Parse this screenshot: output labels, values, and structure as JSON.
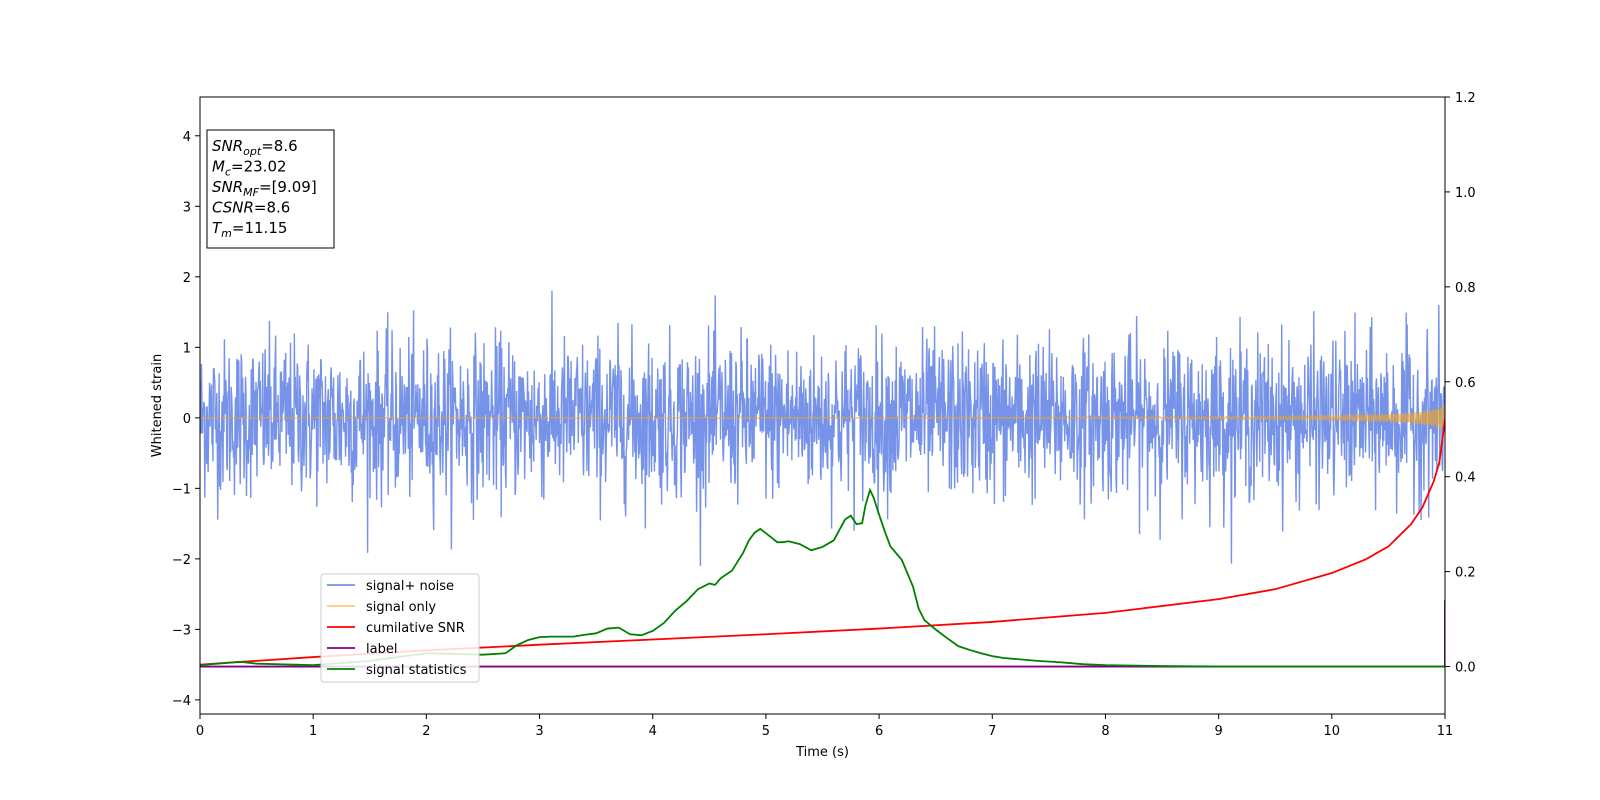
{
  "chart_data": {
    "type": "line",
    "xlabel": "Time (s)",
    "ylabel": "Whitened strain",
    "xlim": [
      0,
      11
    ],
    "ylim_left": [
      -4.2,
      4.55
    ],
    "ylim_right": [
      -0.1,
      1.2
    ],
    "x_ticks": [
      0,
      1,
      2,
      3,
      4,
      5,
      6,
      7,
      8,
      9,
      10,
      11
    ],
    "y_ticks_left": [
      -4,
      -3,
      -2,
      -1,
      0,
      1,
      2,
      3,
      4
    ],
    "y_ticks_right": [
      "0.0",
      "0.2",
      "0.4",
      "0.6",
      "0.8",
      "1.0",
      "1.2"
    ],
    "y_ticks_right_values": [
      0.0,
      0.2,
      0.4,
      0.6,
      0.8,
      1.0,
      1.2
    ],
    "grid": false,
    "legend_position": "lower-left",
    "info_box": {
      "lines": [
        {
          "main": "SNR",
          "sub": "opt",
          "rest": "=8.6"
        },
        {
          "main": "M",
          "sub": "c",
          "rest": "=23.02"
        },
        {
          "main": "SNR",
          "sub": "MF",
          "rest": "=[9.09]"
        },
        {
          "main": "CSNR",
          "sub": "",
          "rest": "=8.6"
        },
        {
          "main": "T",
          "sub": "m",
          "rest": "=11.15"
        }
      ]
    },
    "series": [
      {
        "name": "signal+ noise",
        "axis": "left",
        "color": "#4169e1",
        "style": "noise",
        "noise_amplitude": 0.55,
        "noise_peak": 2.1
      },
      {
        "name": "signal only",
        "axis": "left",
        "color": "#f5a623",
        "style": "chirp",
        "amplitude_end": 0.2,
        "t_merge": 11.15
      },
      {
        "name": "cumilative SNR",
        "axis": "right",
        "color": "#ff0000",
        "x": [
          0,
          0.5,
          1,
          2,
          3,
          4,
          5,
          6,
          7,
          8,
          9,
          9.5,
          10,
          10.3,
          10.5,
          10.7,
          10.8,
          10.9,
          10.95,
          11
        ],
        "y": [
          0.004,
          0.012,
          0.02,
          0.034,
          0.046,
          0.057,
          0.068,
          0.08,
          0.094,
          0.113,
          0.142,
          0.163,
          0.197,
          0.226,
          0.253,
          0.3,
          0.335,
          0.39,
          0.43,
          0.52
        ]
      },
      {
        "name": "label",
        "axis": "right",
        "color": "#800080",
        "x": [
          0,
          10.99,
          11,
          11
        ],
        "y": [
          0,
          0,
          0,
          0.14
        ]
      },
      {
        "name": "signal statistics",
        "axis": "right",
        "color": "#008000",
        "x": [
          0,
          0.2,
          0.35,
          0.5,
          1,
          1.5,
          2,
          2.5,
          2.7,
          2.8,
          2.9,
          3.0,
          3.1,
          3.3,
          3.4,
          3.5,
          3.6,
          3.7,
          3.8,
          3.9,
          4.0,
          4.1,
          4.2,
          4.3,
          4.4,
          4.5,
          4.55,
          4.6,
          4.7,
          4.8,
          4.85,
          4.9,
          4.95,
          5.0,
          5.1,
          5.15,
          5.2,
          5.3,
          5.4,
          5.5,
          5.6,
          5.65,
          5.7,
          5.75,
          5.8,
          5.85,
          5.88,
          5.92,
          5.95,
          6.0,
          6.05,
          6.1,
          6.2,
          6.3,
          6.35,
          6.4,
          6.5,
          6.6,
          6.7,
          6.8,
          6.9,
          7.0,
          7.1,
          7.2,
          7.4,
          7.6,
          7.8,
          8.0,
          8.5,
          9,
          10,
          11
        ],
        "y": [
          0.003,
          0.007,
          0.01,
          0.006,
          0.003,
          0.012,
          0.028,
          0.025,
          0.028,
          0.045,
          0.056,
          0.062,
          0.063,
          0.063,
          0.067,
          0.07,
          0.08,
          0.082,
          0.068,
          0.066,
          0.075,
          0.092,
          0.118,
          0.138,
          0.163,
          0.175,
          0.172,
          0.186,
          0.202,
          0.24,
          0.266,
          0.282,
          0.29,
          0.281,
          0.262,
          0.262,
          0.264,
          0.258,
          0.245,
          0.252,
          0.266,
          0.288,
          0.31,
          0.318,
          0.3,
          0.302,
          0.34,
          0.372,
          0.357,
          0.32,
          0.285,
          0.253,
          0.225,
          0.168,
          0.122,
          0.098,
          0.078,
          0.06,
          0.043,
          0.035,
          0.028,
          0.022,
          0.018,
          0.016,
          0.012,
          0.009,
          0.005,
          0.003,
          0.001,
          0.0,
          0.0,
          0.0
        ]
      }
    ]
  }
}
